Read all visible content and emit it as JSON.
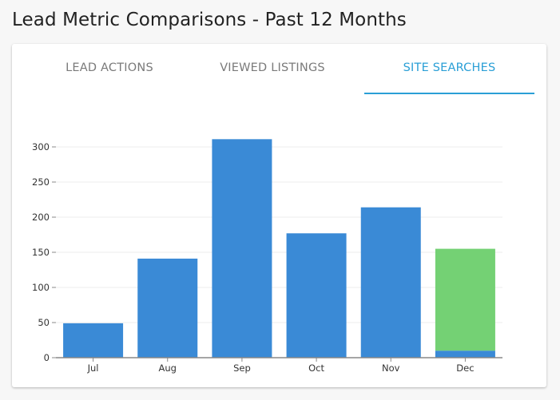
{
  "page": {
    "title": "Lead Metric Comparisons - Past 12 Months"
  },
  "tabs": [
    {
      "label": "LEAD ACTIONS",
      "active": false
    },
    {
      "label": "VIEWED LISTINGS",
      "active": false
    },
    {
      "label": "SITE SEARCHES",
      "active": true
    }
  ],
  "colors": {
    "accent": "#2a9fd6",
    "series_primary": "#3a8ad6",
    "series_secondary": "#74d174",
    "gridline": "#eeeeee",
    "axis": "#888888"
  },
  "chart_data": {
    "type": "bar",
    "stacked": true,
    "categories": [
      "Jul",
      "Aug",
      "Sep",
      "Oct",
      "Nov",
      "Dec"
    ],
    "series": [
      {
        "color": "#3a8ad6",
        "values": [
          49,
          141,
          311,
          177,
          214,
          10
        ]
      },
      {
        "color": "#74d174",
        "values": [
          0,
          0,
          0,
          0,
          0,
          145
        ]
      }
    ],
    "yticks": [
      0,
      50,
      100,
      150,
      200,
      250,
      300
    ],
    "ylim": [
      0,
      300
    ],
    "grid": true,
    "legend": "none"
  }
}
